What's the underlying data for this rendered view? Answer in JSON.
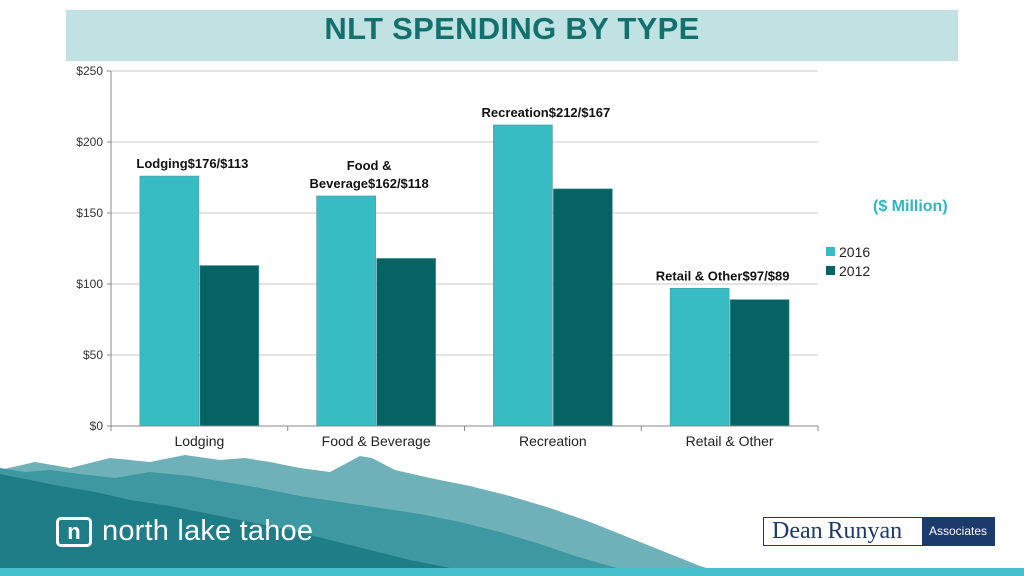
{
  "title": "NLT SPENDING BY TYPE",
  "unit_label": "($ Million)",
  "colors": {
    "series_2016": "#37bcc4",
    "series_2012": "#056463",
    "title": "#14706d",
    "band": "#c1e2e3",
    "accent": "#2fb7c2"
  },
  "chart_data": {
    "type": "bar",
    "title": "NLT SPENDING BY TYPE",
    "categories": [
      "Lodging",
      "Food & Beverage",
      "Recreation",
      "Retail & Other"
    ],
    "series": [
      {
        "name": "2016",
        "values": [
          176,
          162,
          212,
          97
        ]
      },
      {
        "name": "2012",
        "values": [
          113,
          118,
          167,
          89
        ]
      }
    ],
    "ylim": [
      0,
      250
    ],
    "yticks": [
      0,
      50,
      100,
      150,
      200,
      250
    ],
    "ytick_labels": [
      "$0",
      "$50",
      "$100",
      "$150",
      "$200",
      "$250"
    ],
    "grid": true,
    "legend": "right",
    "annotations": [
      {
        "category": "Lodging",
        "lines": [
          "Lodging$176/$113"
        ]
      },
      {
        "category": "Food & Beverage",
        "lines": [
          "Food &",
          "Beverage$162/$118"
        ]
      },
      {
        "category": "Recreation",
        "lines": [
          "Recreation$212/$167"
        ]
      },
      {
        "category": "Retail & Other",
        "lines": [
          "Retail & Other$97/$89"
        ]
      }
    ]
  },
  "logos": {
    "brand_letter": "n",
    "brand_name": "north lake tahoe",
    "partner_name_1": "Dean",
    "partner_name_2": "Runyan",
    "partner_suffix": "Associates"
  }
}
